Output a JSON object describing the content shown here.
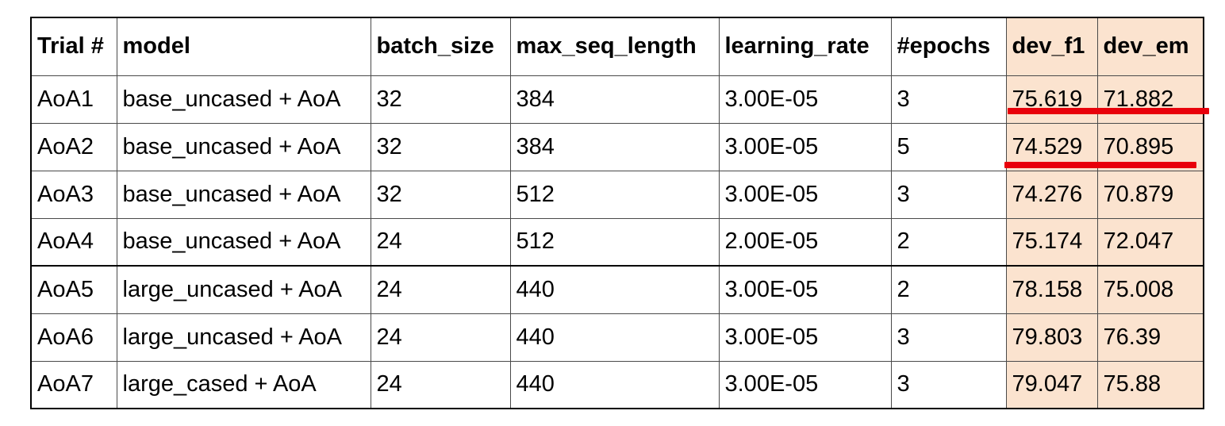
{
  "table": {
    "columns": [
      "Trial #",
      "model",
      "batch_size",
      "max_seq_length",
      "learning_rate",
      "#epochs",
      "dev_f1",
      "dev_em"
    ],
    "rows": [
      [
        "AoA1",
        "base_uncased + AoA",
        "32",
        "384",
        "3.00E-05",
        "3",
        "75.619",
        "71.882"
      ],
      [
        "AoA2",
        "base_uncased + AoA",
        "32",
        "384",
        "3.00E-05",
        "5",
        "74.529",
        "70.895"
      ],
      [
        "AoA3",
        "base_uncased + AoA",
        "32",
        "512",
        "3.00E-05",
        "3",
        "74.276",
        "70.879"
      ],
      [
        "AoA4",
        "base_uncased + AoA",
        "24",
        "512",
        "2.00E-05",
        "2",
        "75.174",
        "72.047"
      ],
      [
        "AoA5",
        "large_uncased + AoA",
        "24",
        "440",
        "3.00E-05",
        "2",
        "78.158",
        "75.008"
      ],
      [
        "AoA6",
        "large_uncased + AoA",
        "24",
        "440",
        "3.00E-05",
        "3",
        "79.803",
        "76.39"
      ],
      [
        "AoA7",
        "large_cased + AoA",
        "24",
        "440",
        "3.00E-05",
        "3",
        "79.047",
        "75.88"
      ]
    ]
  },
  "colors": {
    "highlight_fill": "#fbe3cf",
    "underline_mark": "#e8000b"
  }
}
